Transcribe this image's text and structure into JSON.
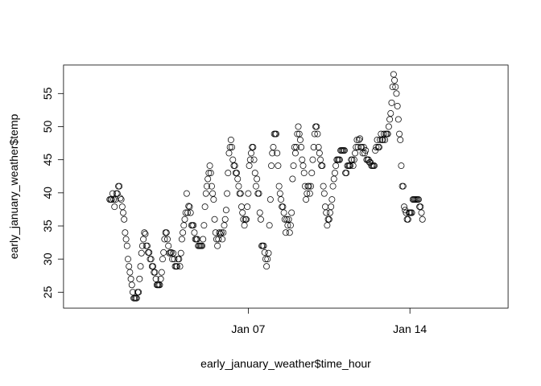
{
  "chart_data": {
    "type": "scatter",
    "title": "",
    "xlabel": "early_january_weather$time_hour",
    "ylabel": "early_january_weather$temp",
    "x_unit": "hours since Jan 01 00:00",
    "xlim": [
      -48,
      414
    ],
    "ylim": [
      22.6,
      59.3
    ],
    "yticks": [
      25,
      30,
      35,
      40,
      45,
      50,
      55
    ],
    "xticks": [
      {
        "x": 144,
        "label": "Jan 07"
      },
      {
        "x": 312,
        "label": "Jan 14"
      }
    ],
    "marker": "open-circle",
    "points": [
      [
        0,
        39.0
      ],
      [
        1,
        39.0
      ],
      [
        2,
        39.0
      ],
      [
        3,
        39.9
      ],
      [
        4,
        39.0
      ],
      [
        5,
        37.9
      ],
      [
        6,
        39.0
      ],
      [
        7,
        39.9
      ],
      [
        8,
        39.9
      ],
      [
        9,
        41.0
      ],
      [
        10,
        41.0
      ],
      [
        11,
        39.2
      ],
      [
        12,
        39.0
      ],
      [
        13,
        37.9
      ],
      [
        14,
        37.0
      ],
      [
        15,
        36.0
      ],
      [
        16,
        34.0
      ],
      [
        17,
        33.0
      ],
      [
        18,
        32.0
      ],
      [
        19,
        30.0
      ],
      [
        20,
        28.9
      ],
      [
        21,
        28.0
      ],
      [
        22,
        27.0
      ],
      [
        23,
        26.1
      ],
      [
        24,
        25.0
      ],
      [
        25,
        24.1
      ],
      [
        26,
        24.1
      ],
      [
        27,
        24.1
      ],
      [
        28,
        24.1
      ],
      [
        29,
        25.0
      ],
      [
        30,
        25.0
      ],
      [
        31,
        27.0
      ],
      [
        32,
        28.9
      ],
      [
        33,
        30.9
      ],
      [
        34,
        32.0
      ],
      [
        35,
        33.0
      ],
      [
        36,
        34.0
      ],
      [
        37,
        33.8
      ],
      [
        38,
        32.0
      ],
      [
        39,
        32.0
      ],
      [
        40,
        31.0
      ],
      [
        41,
        31.0
      ],
      [
        42,
        30.0
      ],
      [
        43,
        30.0
      ],
      [
        44,
        28.9
      ],
      [
        45,
        28.9
      ],
      [
        46,
        28.0
      ],
      [
        47,
        28.0
      ],
      [
        48,
        27.0
      ],
      [
        49,
        26.1
      ],
      [
        50,
        26.1
      ],
      [
        51,
        26.1
      ],
      [
        52,
        26.1
      ],
      [
        53,
        27.0
      ],
      [
        54,
        28.0
      ],
      [
        55,
        30.0
      ],
      [
        56,
        31.0
      ],
      [
        57,
        33.0
      ],
      [
        58,
        34.0
      ],
      [
        59,
        34.0
      ],
      [
        60,
        33.0
      ],
      [
        61,
        32.0
      ],
      [
        62,
        30.9
      ],
      [
        63,
        31.0
      ],
      [
        64,
        31.0
      ],
      [
        65,
        30.0
      ],
      [
        66,
        30.9
      ],
      [
        67,
        30.0
      ],
      [
        68,
        28.9
      ],
      [
        69,
        28.9
      ],
      [
        70,
        28.9
      ],
      [
        71,
        30.0
      ],
      [
        72,
        30.0
      ],
      [
        73,
        28.9
      ],
      [
        74,
        30.9
      ],
      [
        75,
        33.0
      ],
      [
        76,
        34.0
      ],
      [
        77,
        35.1
      ],
      [
        78,
        36.0
      ],
      [
        79,
        37.0
      ],
      [
        80,
        39.9
      ],
      [
        81,
        37.0
      ],
      [
        82,
        38.0
      ],
      [
        83,
        37.9
      ],
      [
        84,
        37.0
      ],
      [
        85,
        35.1
      ],
      [
        86,
        35.1
      ],
      [
        87,
        35.1
      ],
      [
        88,
        34.0
      ],
      [
        89,
        33.0
      ],
      [
        90,
        33.0
      ],
      [
        91,
        33.0
      ],
      [
        92,
        32.0
      ],
      [
        93,
        32.0
      ],
      [
        94,
        32.0
      ],
      [
        95,
        32.0
      ],
      [
        96,
        32.0
      ],
      [
        97,
        33.0
      ],
      [
        98,
        35.1
      ],
      [
        99,
        37.9
      ],
      [
        100,
        39.9
      ],
      [
        101,
        41.0
      ],
      [
        102,
        42.1
      ],
      [
        103,
        43.0
      ],
      [
        104,
        44.1
      ],
      [
        105,
        43.0
      ],
      [
        106,
        41.0
      ],
      [
        107,
        39.9
      ],
      [
        108,
        39.0
      ],
      [
        109,
        36.0
      ],
      [
        110,
        34.0
      ],
      [
        111,
        33.0
      ],
      [
        112,
        32.0
      ],
      [
        113,
        33.0
      ],
      [
        114,
        34.0
      ],
      [
        115,
        33.8
      ],
      [
        116,
        34.0
      ],
      [
        117,
        33.0
      ],
      [
        118,
        34.0
      ],
      [
        119,
        35.1
      ],
      [
        120,
        36.0
      ],
      [
        121,
        37.4
      ],
      [
        122,
        39.9
      ],
      [
        123,
        43.0
      ],
      [
        124,
        46.0
      ],
      [
        125,
        46.9
      ],
      [
        126,
        48.0
      ],
      [
        127,
        46.9
      ],
      [
        128,
        45.0
      ],
      [
        129,
        44.1
      ],
      [
        130,
        44.1
      ],
      [
        131,
        43.0
      ],
      [
        132,
        43.0
      ],
      [
        133,
        42.1
      ],
      [
        134,
        41.0
      ],
      [
        135,
        39.9
      ],
      [
        136,
        39.9
      ],
      [
        137,
        37.9
      ],
      [
        138,
        37.0
      ],
      [
        139,
        36.0
      ],
      [
        140,
        35.1
      ],
      [
        141,
        36.0
      ],
      [
        142,
        36.0
      ],
      [
        143,
        37.9
      ],
      [
        144,
        39.9
      ],
      [
        145,
        44.1
      ],
      [
        146,
        45.0
      ],
      [
        147,
        46.0
      ],
      [
        148,
        46.9
      ],
      [
        149,
        46.9
      ],
      [
        150,
        45.0
      ],
      [
        151,
        43.0
      ],
      [
        152,
        41.0
      ],
      [
        153,
        42.1
      ],
      [
        154,
        39.9
      ],
      [
        155,
        39.9
      ],
      [
        156,
        37.0
      ],
      [
        157,
        36.0
      ],
      [
        158,
        32.0
      ],
      [
        159,
        32.0
      ],
      [
        160,
        32.0
      ],
      [
        161,
        31.0
      ],
      [
        162,
        30.0
      ],
      [
        163,
        28.9
      ],
      [
        164,
        30.0
      ],
      [
        165,
        30.9
      ],
      [
        166,
        35.1
      ],
      [
        167,
        39.0
      ],
      [
        168,
        44.1
      ],
      [
        169,
        46.0
      ],
      [
        170,
        46.9
      ],
      [
        171,
        48.9
      ],
      [
        172,
        48.9
      ],
      [
        173,
        48.9
      ],
      [
        174,
        46.0
      ],
      [
        175,
        44.1
      ],
      [
        176,
        41.0
      ],
      [
        177,
        39.9
      ],
      [
        178,
        39.0
      ],
      [
        179,
        37.9
      ],
      [
        180,
        37.9
      ],
      [
        181,
        37.0
      ],
      [
        182,
        36.0
      ],
      [
        183,
        34.0
      ],
      [
        184,
        36.0
      ],
      [
        185,
        35.1
      ],
      [
        186,
        36.0
      ],
      [
        187,
        34.0
      ],
      [
        188,
        35.1
      ],
      [
        189,
        37.0
      ],
      [
        190,
        42.1
      ],
      [
        191,
        44.1
      ],
      [
        192,
        46.9
      ],
      [
        193,
        46.0
      ],
      [
        194,
        46.9
      ],
      [
        195,
        48.9
      ],
      [
        196,
        50.0
      ],
      [
        197,
        48.9
      ],
      [
        198,
        48.0
      ],
      [
        199,
        46.9
      ],
      [
        200,
        45.0
      ],
      [
        201,
        44.1
      ],
      [
        202,
        43.0
      ],
      [
        203,
        41.0
      ],
      [
        204,
        39.0
      ],
      [
        205,
        39.9
      ],
      [
        206,
        41.0
      ],
      [
        207,
        41.0
      ],
      [
        208,
        39.9
      ],
      [
        209,
        41.0
      ],
      [
        210,
        43.0
      ],
      [
        211,
        45.0
      ],
      [
        212,
        46.9
      ],
      [
        213,
        48.9
      ],
      [
        214,
        50.0
      ],
      [
        215,
        50.0
      ],
      [
        216,
        48.9
      ],
      [
        217,
        46.9
      ],
      [
        218,
        46.0
      ],
      [
        219,
        45.0
      ],
      [
        220,
        44.1
      ],
      [
        221,
        44.1
      ],
      [
        222,
        41.0
      ],
      [
        223,
        39.9
      ],
      [
        224,
        37.9
      ],
      [
        225,
        37.0
      ],
      [
        226,
        35.1
      ],
      [
        227,
        36.0
      ],
      [
        228,
        36.0
      ],
      [
        229,
        37.0
      ],
      [
        230,
        37.9
      ],
      [
        231,
        39.0
      ],
      [
        232,
        41.0
      ],
      [
        233,
        42.1
      ],
      [
        234,
        43.0
      ],
      [
        235,
        44.1
      ],
      [
        236,
        45.0
      ],
      [
        237,
        45.0
      ],
      [
        238,
        45.0
      ],
      [
        239,
        45.0
      ],
      [
        240,
        46.4
      ],
      [
        241,
        46.4
      ],
      [
        242,
        46.4
      ],
      [
        243,
        46.4
      ],
      [
        244,
        46.4
      ],
      [
        245,
        43.0
      ],
      [
        246,
        43.0
      ],
      [
        247,
        44.1
      ],
      [
        248,
        44.1
      ],
      [
        249,
        44.1
      ],
      [
        250,
        44.1
      ],
      [
        251,
        45.0
      ],
      [
        252,
        45.0
      ],
      [
        253,
        44.1
      ],
      [
        254,
        45.0
      ],
      [
        255,
        46.0
      ],
      [
        256,
        46.9
      ],
      [
        257,
        48.0
      ],
      [
        258,
        46.9
      ],
      [
        259,
        48.0
      ],
      [
        260,
        48.2
      ],
      [
        261,
        46.9
      ],
      [
        262,
        46.9
      ],
      [
        263,
        46.0
      ],
      [
        264,
        46.9
      ],
      [
        265,
        46.0
      ],
      [
        266,
        46.4
      ],
      [
        267,
        45.0
      ],
      [
        268,
        45.0
      ],
      [
        269,
        45.0
      ],
      [
        270,
        44.6
      ],
      [
        271,
        44.6
      ],
      [
        272,
        44.1
      ],
      [
        273,
        44.1
      ],
      [
        274,
        44.1
      ],
      [
        275,
        44.1
      ],
      [
        276,
        46.4
      ],
      [
        277,
        46.9
      ],
      [
        278,
        48.0
      ],
      [
        279,
        46.9
      ],
      [
        280,
        46.9
      ],
      [
        281,
        48.0
      ],
      [
        282,
        48.9
      ],
      [
        283,
        48.0
      ],
      [
        284,
        48.0
      ],
      [
        285,
        48.9
      ],
      [
        286,
        48.0
      ],
      [
        287,
        48.9
      ],
      [
        288,
        48.9
      ],
      [
        289,
        48.9
      ],
      [
        290,
        50.0
      ],
      [
        291,
        51.1
      ],
      [
        292,
        52.0
      ],
      [
        293,
        53.6
      ],
      [
        294,
        56.0
      ],
      [
        295,
        57.9
      ],
      [
        296,
        57.0
      ],
      [
        297,
        56.0
      ],
      [
        298,
        55.0
      ],
      [
        299,
        53.1
      ],
      [
        300,
        51.1
      ],
      [
        301,
        48.9
      ],
      [
        302,
        48.0
      ],
      [
        303,
        44.1
      ],
      [
        304,
        41.0
      ],
      [
        305,
        41.0
      ],
      [
        306,
        37.9
      ],
      [
        307,
        37.4
      ],
      [
        308,
        37.0
      ],
      [
        309,
        36.0
      ],
      [
        310,
        36.0
      ],
      [
        311,
        37.0
      ],
      [
        312,
        37.0
      ],
      [
        313,
        37.0
      ],
      [
        314,
        37.0
      ],
      [
        315,
        39.0
      ],
      [
        316,
        39.0
      ],
      [
        317,
        39.0
      ],
      [
        318,
        39.0
      ],
      [
        319,
        39.0
      ],
      [
        320,
        39.0
      ],
      [
        321,
        39.0
      ],
      [
        322,
        37.9
      ],
      [
        323,
        37.9
      ],
      [
        324,
        37.0
      ],
      [
        325,
        36.0
      ]
    ]
  }
}
